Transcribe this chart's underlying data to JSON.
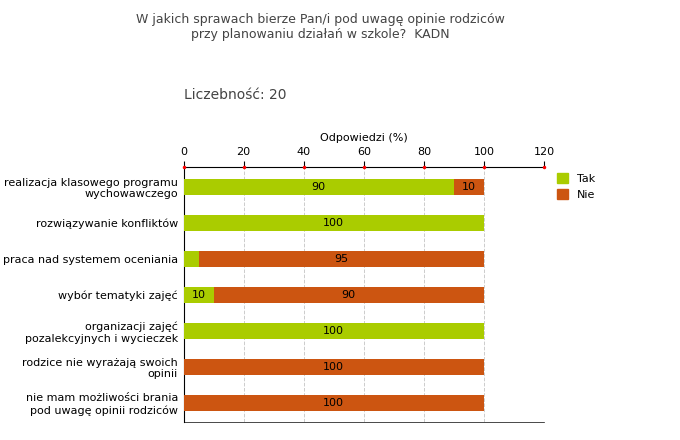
{
  "title": "W jakich sprawach bierze Pan/i pod uwagę opinie rodziców\nprzy planowaniu działań w szkole?  KADN",
  "subtitle": "Liczebność: 20",
  "xlabel": "Odpowiedzi (%)",
  "categories": [
    "realizacja klasowego programu\nwychowawczego",
    "rozwiązywanie konfliktów",
    "praca nad systemem oceniania",
    "wybór tematyki zajęć",
    "organizacji zajęć\npozalekcyjnych i wycieczek",
    "rodzice nie wyrażają swoich\nopinii",
    "nie mam możliwości brania\npod uwagę opinii rodziców"
  ],
  "tak_values": [
    90,
    100,
    5,
    10,
    100,
    0,
    0
  ],
  "nie_values": [
    10,
    0,
    95,
    90,
    0,
    100,
    100
  ],
  "tak_color": "#aacc00",
  "nie_color": "#cc5511",
  "xlim": [
    0,
    120
  ],
  "xticks": [
    0,
    20,
    40,
    60,
    80,
    100,
    120
  ],
  "background_color": "#ffffff",
  "grid_color": "#cccccc",
  "bar_height": 0.45,
  "legend_labels": [
    "Tak",
    "Nie"
  ],
  "title_fontsize": 9,
  "subtitle_fontsize": 10,
  "label_fontsize": 8,
  "tick_fontsize": 8,
  "value_fontsize": 8
}
